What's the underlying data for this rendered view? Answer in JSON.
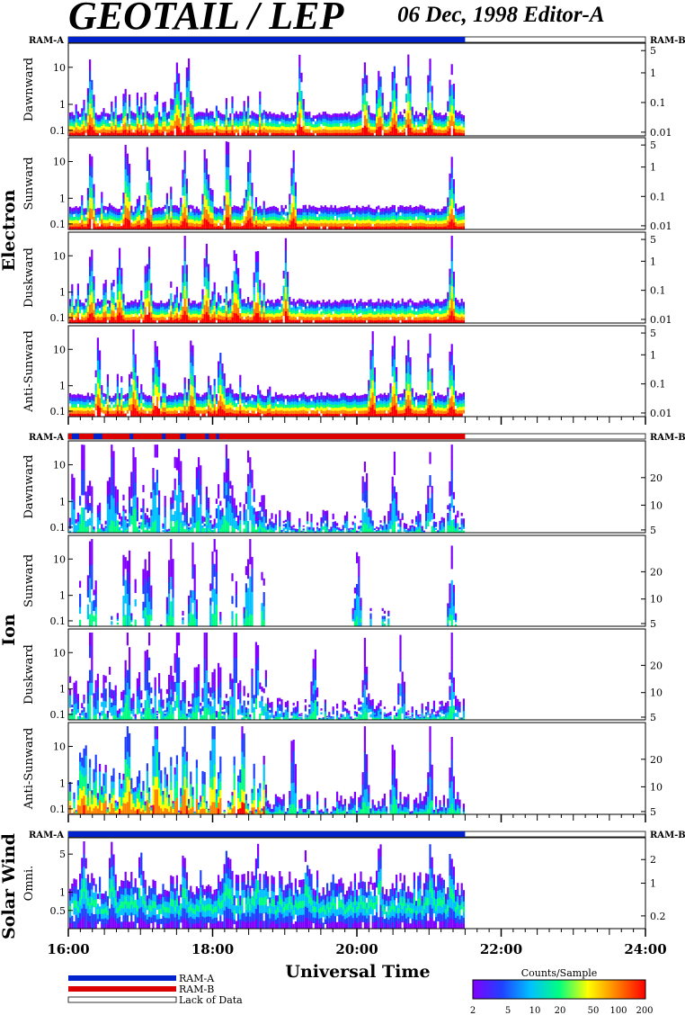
{
  "header": {
    "title": "GEOTAIL / LEP",
    "date_editor": "06 Dec, 1998   Editor-A"
  },
  "labels": {
    "ram_a": "RAM-A",
    "ram_b": "RAM-B",
    "xlabel": "Universal Time",
    "colorbar_title": "Counts/Sample",
    "legend_ram_a": "RAM-A",
    "legend_ram_b": "RAM-B",
    "legend_lack": "Lack of Data"
  },
  "colors": {
    "ram_a": "#0022cc",
    "ram_b": "#dd0000",
    "colorscale": [
      "#8000ff",
      "#2040ff",
      "#00c0ff",
      "#00ff80",
      "#ffff00",
      "#ff8000",
      "#ff0000"
    ]
  },
  "chart_data": {
    "type": "heatmap",
    "x_range_hours": [
      16,
      24
    ],
    "x_tick_labels": [
      "16:00",
      "18:00",
      "20:00",
      "22:00",
      "24:00"
    ],
    "xlabel": "Universal Time",
    "data_end_hour": 21.5,
    "colorbar": {
      "label": "Counts/Sample",
      "range": [
        2,
        200
      ],
      "scale": "log",
      "ticks": [
        "2",
        "5",
        "10",
        "20",
        "50",
        "100",
        "200"
      ]
    },
    "groups": [
      {
        "name": "Electron",
        "ram_mode_label_left": "RAM-A",
        "ram_mode_label_right": "RAM-B",
        "ram_mode": "RAM-A",
        "right_axis_ticks": [
          "5",
          "1",
          "0.1",
          "0.01"
        ],
        "left_axis_ticks": [
          "10",
          "1",
          "0.1"
        ],
        "left_axis_scale": "log",
        "panels": [
          {
            "name": "Dawnward",
            "burst_hours": [
              16.3,
              17.5,
              17.65,
              19.2,
              20.1,
              20.3,
              20.5,
              20.7,
              21.0,
              21.3
            ]
          },
          {
            "name": "Sunward",
            "burst_hours": [
              16.3,
              16.8,
              17.1,
              17.6,
              17.9,
              18.2,
              18.5,
              19.1,
              21.3
            ]
          },
          {
            "name": "Duskward",
            "burst_hours": [
              16.3,
              16.7,
              17.1,
              17.6,
              17.9,
              18.3,
              18.6,
              19.0,
              21.3
            ]
          },
          {
            "name": "Anti-Sunward",
            "burst_hours": [
              16.4,
              16.9,
              17.2,
              17.7,
              18.1,
              20.2,
              20.5,
              20.7,
              21.0,
              21.3
            ]
          }
        ]
      },
      {
        "name": "Ion",
        "ram_mode_label_left": "RAM-A",
        "ram_mode_label_right": "RAM-B",
        "ram_mode": "RAM-B",
        "right_axis_ticks": [
          "20",
          "10",
          "5"
        ],
        "left_axis_ticks": [
          "10",
          "1",
          "0.1"
        ],
        "left_axis_scale": "log",
        "panels": [
          {
            "name": "Dawnward",
            "burst_hours": [
              16.2,
              16.6,
              16.9,
              17.2,
              17.5,
              17.8,
              18.2,
              18.5,
              20.1,
              20.5,
              21.0,
              21.3
            ]
          },
          {
            "name": "Sunward",
            "burst_hours": [
              16.3,
              16.8,
              17.1,
              17.4,
              17.7,
              18.0,
              18.5,
              20.0,
              21.3
            ]
          },
          {
            "name": "Duskward",
            "burst_hours": [
              16.3,
              16.8,
              17.1,
              17.5,
              17.9,
              18.3,
              18.6,
              19.4,
              20.1,
              20.6,
              21.3
            ]
          },
          {
            "name": "Anti-Sunward",
            "burst_hours": [
              16.2,
              16.8,
              17.2,
              17.6,
              18.0,
              18.4,
              19.1,
              20.1,
              20.5,
              21.0,
              21.3
            ]
          }
        ]
      },
      {
        "name": "Solar Wind",
        "ram_mode_label_left": "RAM-A",
        "ram_mode_label_right": "RAM-B",
        "ram_mode": "RAM-A",
        "right_axis_ticks": [
          "2",
          "1",
          "0.2"
        ],
        "left_axis_ticks": [
          "5",
          "1",
          "0.5"
        ],
        "left_axis_scale": "log",
        "panels": [
          {
            "name": "Omni.",
            "burst_hours": [
              16.2,
              16.6,
              17.0,
              17.6,
              18.2,
              18.6,
              19.3,
              20.3,
              21.0,
              21.3
            ]
          }
        ]
      }
    ]
  }
}
